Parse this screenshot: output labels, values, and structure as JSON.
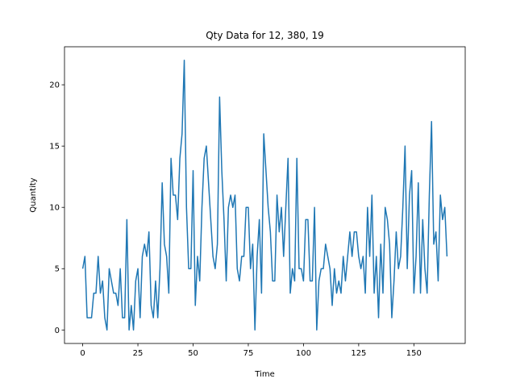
{
  "chart_data": {
    "type": "line",
    "title": "Qty Data for 12, 380, 19",
    "xlabel": "Time",
    "ylabel": "Quantity",
    "x": [
      0,
      1,
      2,
      3,
      4,
      5,
      6,
      7,
      8,
      9,
      10,
      11,
      12,
      13,
      14,
      15,
      16,
      17,
      18,
      19,
      20,
      21,
      22,
      23,
      24,
      25,
      26,
      27,
      28,
      29,
      30,
      31,
      32,
      33,
      34,
      35,
      36,
      37,
      38,
      39,
      40,
      41,
      42,
      43,
      44,
      45,
      46,
      47,
      48,
      49,
      50,
      51,
      52,
      53,
      54,
      55,
      56,
      57,
      58,
      59,
      60,
      61,
      62,
      63,
      64,
      65,
      66,
      67,
      68,
      69,
      70,
      71,
      72,
      73,
      74,
      75,
      76,
      77,
      78,
      79,
      80,
      81,
      82,
      83,
      84,
      85,
      86,
      87,
      88,
      89,
      90,
      91,
      92,
      93,
      94,
      95,
      96,
      97,
      98,
      99,
      100,
      101,
      102,
      103,
      104,
      105,
      106,
      107,
      108,
      109,
      110,
      111,
      112,
      113,
      114,
      115,
      116,
      117,
      118,
      119,
      120,
      121,
      122,
      123,
      124,
      125,
      126,
      127,
      128,
      129,
      130,
      131,
      132,
      133,
      134,
      135,
      136,
      137,
      138,
      139,
      140,
      141,
      142,
      143,
      144,
      145,
      146,
      147,
      148,
      149,
      150,
      151,
      152,
      153,
      154,
      155,
      156,
      157,
      158,
      159,
      160,
      161,
      162,
      163,
      164,
      165
    ],
    "series": [
      {
        "name": "Quantity",
        "color": "#1f77b4",
        "values": [
          5,
          6,
          1,
          1,
          1,
          3,
          3,
          6,
          3,
          4,
          1,
          0,
          5,
          4,
          3,
          3,
          2,
          5,
          1,
          1,
          9,
          0,
          2,
          0,
          4,
          5,
          1,
          6,
          7,
          6,
          8,
          2,
          1,
          4,
          1,
          5,
          12,
          7,
          6,
          3,
          14,
          11,
          11,
          9,
          14,
          16,
          22,
          10,
          5,
          5,
          13,
          2,
          6,
          4,
          10,
          14,
          15,
          12,
          9,
          6,
          5,
          7,
          19,
          13,
          9,
          4,
          10,
          11,
          10,
          11,
          5,
          4,
          6,
          6,
          10,
          10,
          5,
          7,
          0,
          6,
          9,
          3,
          16,
          13,
          10,
          8,
          4,
          4,
          11,
          8,
          10,
          6,
          10,
          14,
          3,
          5,
          4,
          14,
          5,
          5,
          4,
          9,
          9,
          4,
          4,
          10,
          0,
          4,
          5,
          5,
          7,
          6,
          5,
          2,
          5,
          3,
          4,
          3,
          6,
          4,
          6,
          8,
          6,
          8,
          8,
          6,
          5,
          6,
          3,
          10,
          6,
          11,
          3,
          6,
          1,
          7,
          3,
          10,
          9,
          7,
          1,
          4,
          8,
          5,
          6,
          10,
          15,
          5,
          11,
          13,
          3,
          6,
          12,
          3,
          9,
          5,
          3,
          11,
          17,
          7,
          8,
          4,
          11,
          9,
          10,
          6
        ]
      }
    ],
    "xlim": [
      -8.25,
      173.25
    ],
    "ylim": [
      -1.1,
      23.1
    ],
    "xticks": [
      0,
      25,
      50,
      75,
      100,
      125,
      150
    ],
    "yticks": [
      0,
      5,
      10,
      15,
      20
    ]
  }
}
